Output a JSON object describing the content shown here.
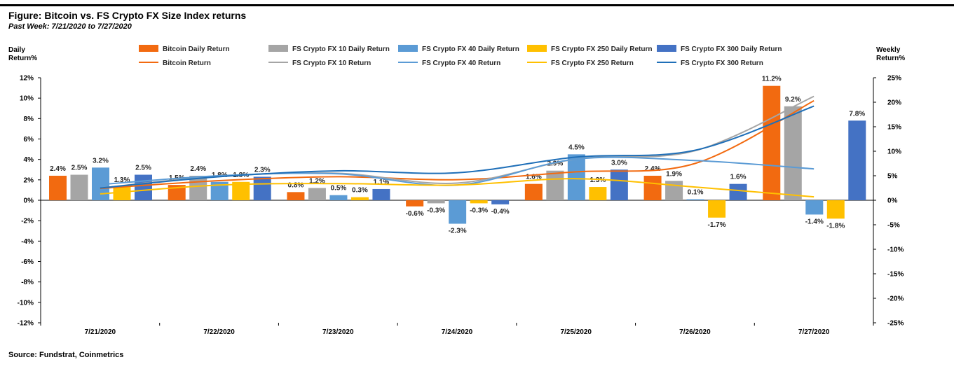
{
  "header": {
    "title": "Figure: Bitcoin vs. FS Crypto FX Size Index returns",
    "subtitle": "Past Week: 7/21/2020 to 7/27/2020"
  },
  "footer": {
    "source": "Source: Fundstrat, Coinmetrics"
  },
  "chart_data": {
    "type": "bar",
    "categories": [
      "7/21/2020",
      "7/22/2020",
      "7/23/2020",
      "7/24/2020",
      "7/25/2020",
      "7/26/2020",
      "7/27/2020"
    ],
    "ylabel_left": [
      "Daily",
      "Return%"
    ],
    "ylabel_right": [
      "Weekly",
      "Return%"
    ],
    "ylim_left": [
      -12,
      12
    ],
    "yticks_left": [
      "12%",
      "10%",
      "8%",
      "6%",
      "4%",
      "2%",
      "0%",
      "-2%",
      "-4%",
      "-6%",
      "-8%",
      "-10%",
      "-12%"
    ],
    "ylim_right": [
      -25,
      25
    ],
    "yticks_right": [
      "25%",
      "20%",
      "15%",
      "10%",
      "5%",
      "0%",
      "-5%",
      "-10%",
      "-15%",
      "-20%",
      "-25%"
    ],
    "bar_series": [
      {
        "name": "Bitcoin Daily Return",
        "color": "#f26a10",
        "values": [
          2.4,
          1.5,
          0.8,
          -0.6,
          1.6,
          2.4,
          11.2
        ],
        "labels": [
          "2.4%",
          "1.5%",
          "0.8%",
          "-0.6%",
          "1.6%",
          "2.4%",
          "11.2%"
        ]
      },
      {
        "name": "FS Crypto FX 10 Daily Return",
        "color": "#a5a5a5",
        "values": [
          2.5,
          2.4,
          1.2,
          -0.3,
          2.9,
          1.9,
          9.2
        ],
        "labels": [
          "2.5%",
          "2.4%",
          "1.2%",
          "-0.3%",
          "2.9%",
          "1.9%",
          "9.2%"
        ]
      },
      {
        "name": "FS Crypto FX 40 Daily Return",
        "color": "#5b9bd5",
        "values": [
          3.2,
          1.8,
          0.5,
          -2.3,
          4.5,
          0.1,
          -1.4
        ],
        "labels": [
          "3.2%",
          "1.8%",
          "0.5%",
          "-2.3%",
          "4.5%",
          "0.1%",
          "-1.4%"
        ]
      },
      {
        "name": "FS Crypto FX 250 Daily Return",
        "color": "#ffc000",
        "values": [
          1.3,
          1.8,
          0.3,
          -0.3,
          1.3,
          -1.7,
          -1.8
        ],
        "labels": [
          "1.3%",
          "1.8%",
          "0.3%",
          "-0.3%",
          "1.3%",
          "-1.7%",
          "-1.8%"
        ]
      },
      {
        "name": "FS Crypto FX 300 Daily Return",
        "color": "#4472c4",
        "values": [
          2.5,
          2.3,
          1.1,
          -0.4,
          3.0,
          1.6,
          7.8
        ],
        "labels": [
          "2.5%",
          "2.3%",
          "1.1%",
          "-0.4%",
          "3.0%",
          "1.6%",
          "7.8%"
        ]
      }
    ],
    "line_series": [
      {
        "name": "Bitcoin Return",
        "color": "#f26a10",
        "values": [
          2.4,
          4.0,
          4.8,
          4.2,
          5.8,
          7.5,
          20.3
        ]
      },
      {
        "name": "FS Crypto FX 10 Return",
        "color": "#a5a5a5",
        "values": [
          2.5,
          4.9,
          5.5,
          3.5,
          8.4,
          10.1,
          21.2
        ]
      },
      {
        "name": "FS Crypto FX 40 Return",
        "color": "#5b9bd5",
        "values": [
          3.2,
          5.0,
          5.4,
          3.1,
          8.4,
          8.1,
          6.4
        ]
      },
      {
        "name": "FS Crypto FX 250 Return",
        "color": "#ffc000",
        "values": [
          1.3,
          3.1,
          3.4,
          3.1,
          4.4,
          2.7,
          0.7
        ]
      },
      {
        "name": "FS Crypto FX 300 Return",
        "color": "#1f6fb8",
        "values": [
          2.5,
          4.8,
          6.0,
          5.6,
          8.8,
          10.2,
          19.2
        ]
      }
    ],
    "legend_position": "top",
    "grid": false
  }
}
